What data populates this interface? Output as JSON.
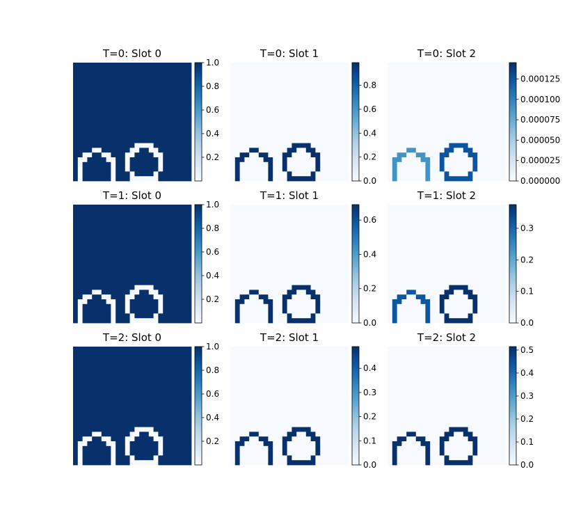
{
  "chart_data": {
    "type": "heatmap",
    "grid_size": [
      25,
      25
    ],
    "colormap": "Blues",
    "axes_visible": false,
    "layout": {
      "rows": 3,
      "cols": 3
    },
    "panels": [
      {
        "title": "T=0: Slot 0",
        "pattern": "inverse",
        "vmin": 0.0,
        "vmax": 1.0,
        "cbar_ticks": [
          0.2,
          0.4,
          0.6,
          0.8,
          1.0
        ],
        "cbar_tick_labels": [
          "0.2",
          "0.4",
          "0.6",
          "0.8",
          "1.0"
        ],
        "background_value": 1.0,
        "outline_value": 0.0,
        "outline_value_alt": 0.0
      },
      {
        "title": "T=0: Slot 1",
        "pattern": "outline",
        "vmin": 0.0,
        "vmax": 0.99,
        "cbar_ticks": [
          0.0,
          0.2,
          0.4,
          0.6,
          0.8
        ],
        "cbar_tick_labels": [
          "0.0",
          "0.2",
          "0.4",
          "0.6",
          "0.8"
        ],
        "background_value": 0.0,
        "outline_value": 0.99,
        "outline_value_alt": 0.99
      },
      {
        "title": "T=0: Slot 2",
        "pattern": "outline",
        "vmin": 0.0,
        "vmax": 0.000145,
        "cbar_ticks": [
          0.0,
          2.5e-05,
          5e-05,
          7.5e-05,
          0.0001,
          0.000125
        ],
        "cbar_tick_labels": [
          "0.000000",
          "0.000025",
          "0.000050",
          "0.000075",
          "0.000100",
          "0.000125"
        ],
        "background_value": 0.0,
        "outline_value": 9e-05,
        "outline_value_alt": 0.000125
      },
      {
        "title": "T=1: Slot 0",
        "pattern": "inverse",
        "vmin": 0.0,
        "vmax": 1.0,
        "cbar_ticks": [
          0.2,
          0.4,
          0.6,
          0.8,
          1.0
        ],
        "cbar_tick_labels": [
          "0.2",
          "0.4",
          "0.6",
          "0.8",
          "1.0"
        ],
        "background_value": 1.0,
        "outline_value": 0.0,
        "outline_value_alt": 0.0
      },
      {
        "title": "T=1: Slot 1",
        "pattern": "outline",
        "vmin": 0.0,
        "vmax": 0.69,
        "cbar_ticks": [
          0.0,
          0.2,
          0.4,
          0.6
        ],
        "cbar_tick_labels": [
          "0.0",
          "0.2",
          "0.4",
          "0.6"
        ],
        "background_value": 0.0,
        "outline_value": 0.69,
        "outline_value_alt": 0.69
      },
      {
        "title": "T=1: Slot 2",
        "pattern": "outline",
        "vmin": 0.0,
        "vmax": 0.375,
        "cbar_ticks": [
          0.0,
          0.1,
          0.2,
          0.3
        ],
        "cbar_tick_labels": [
          "0.0",
          "0.1",
          "0.2",
          "0.3"
        ],
        "background_value": 0.0,
        "outline_value": 0.32,
        "outline_value_alt": 0.375
      },
      {
        "title": "T=2: Slot 0",
        "pattern": "inverse",
        "vmin": 0.0,
        "vmax": 1.0,
        "cbar_ticks": [
          0.2,
          0.4,
          0.6,
          0.8,
          1.0
        ],
        "cbar_tick_labels": [
          "0.2",
          "0.4",
          "0.6",
          "0.8",
          "1.0"
        ],
        "background_value": 1.0,
        "outline_value": 0.0,
        "outline_value_alt": 0.0
      },
      {
        "title": "T=2: Slot 1",
        "pattern": "outline",
        "vmin": 0.0,
        "vmax": 0.49,
        "cbar_ticks": [
          0.0,
          0.1,
          0.2,
          0.3,
          0.4
        ],
        "cbar_tick_labels": [
          "0.0",
          "0.1",
          "0.2",
          "0.3",
          "0.4"
        ],
        "background_value": 0.0,
        "outline_value": 0.49,
        "outline_value_alt": 0.49
      },
      {
        "title": "T=2: Slot 2",
        "pattern": "outline",
        "vmin": 0.0,
        "vmax": 0.515,
        "cbar_ticks": [
          0.0,
          0.1,
          0.2,
          0.3,
          0.4,
          0.5
        ],
        "cbar_tick_labels": [
          "0.0",
          "0.1",
          "0.2",
          "0.3",
          "0.4",
          "0.5"
        ],
        "background_value": 0.0,
        "outline_value": 0.515,
        "outline_value_alt": 0.515
      }
    ]
  }
}
